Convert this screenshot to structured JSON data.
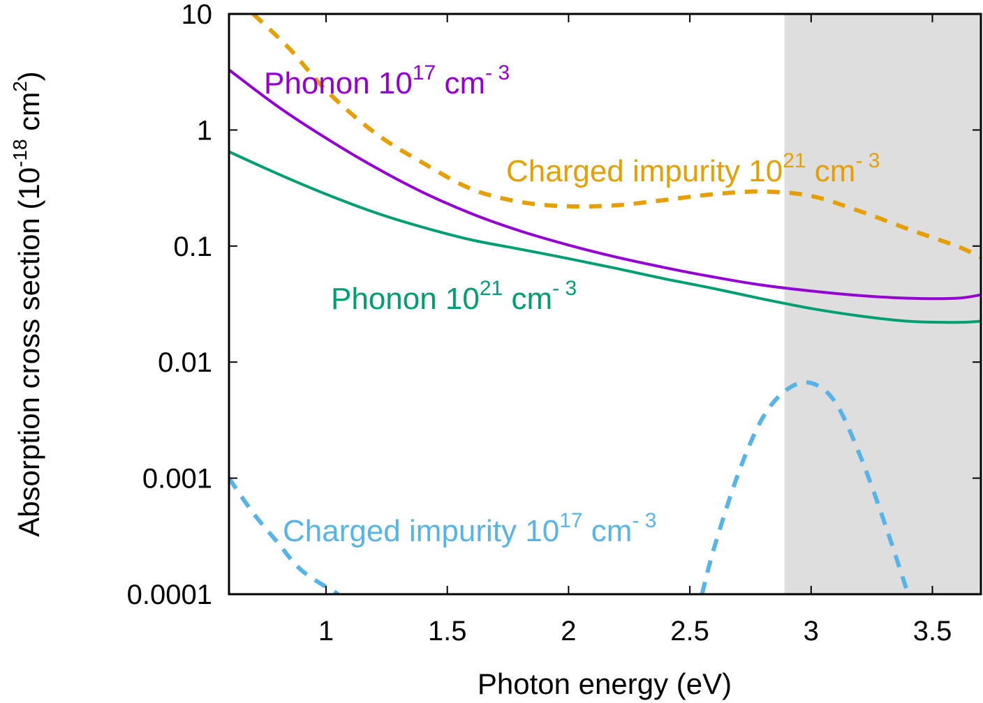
{
  "chart_data": {
    "type": "line",
    "title": "",
    "xlabel": "Photon energy (eV)",
    "ylabel": {
      "main": "Absorption cross section (10",
      "exp": "-18",
      "unit": " cm",
      "unit_exp": "2",
      "close": ")"
    },
    "xlim": [
      0.6,
      3.7
    ],
    "ylim": [
      0.0001,
      10
    ],
    "yscale": "log",
    "x_ticks": [
      1,
      1.5,
      2,
      2.5,
      3,
      3.5
    ],
    "x_tick_labels": [
      "1",
      "1.5",
      "2",
      "2.5",
      "3",
      "3.5"
    ],
    "y_ticks": [
      0.0001,
      0.001,
      0.01,
      0.1,
      1,
      10
    ],
    "y_tick_labels": [
      "0.0001",
      "0.001",
      "0.01",
      "0.1",
      "1",
      "10"
    ],
    "shaded_region": {
      "x_start": 2.89,
      "x_end": 3.7,
      "color": "#dedede"
    },
    "series": [
      {
        "name": "Phonon 10^17 cm^-3",
        "label_base": "Phonon 10",
        "label_exp": "17",
        "label_unit": " cm",
        "label_unit_exp": "- 3",
        "color": "#9400d3",
        "dashed": false,
        "x": [
          0.6,
          0.8,
          1.0,
          1.2,
          1.4,
          1.6,
          1.8,
          2.0,
          2.2,
          2.4,
          2.6,
          2.8,
          3.0,
          3.2,
          3.4,
          3.6,
          3.7
        ],
        "y": [
          3.3,
          1.6,
          0.85,
          0.48,
          0.29,
          0.19,
          0.135,
          0.102,
          0.08,
          0.065,
          0.054,
          0.046,
          0.041,
          0.0375,
          0.0355,
          0.0355,
          0.038
        ]
      },
      {
        "name": "Phonon 10^21 cm^-3",
        "label_base": "Phonon 10",
        "label_exp": "21",
        "label_unit": " cm",
        "label_unit_exp": "- 3",
        "color": "#009e73",
        "dashed": false,
        "x": [
          0.6,
          0.8,
          1.0,
          1.2,
          1.4,
          1.6,
          1.8,
          2.0,
          2.2,
          2.4,
          2.6,
          2.8,
          3.0,
          3.2,
          3.4,
          3.6,
          3.7
        ],
        "y": [
          0.65,
          0.42,
          0.28,
          0.195,
          0.145,
          0.113,
          0.094,
          0.078,
          0.064,
          0.052,
          0.043,
          0.035,
          0.029,
          0.025,
          0.0225,
          0.022,
          0.0225
        ]
      },
      {
        "name": "Charged impurity 10^21 cm^-3",
        "label_base": "Charged impurity 10",
        "label_exp": "21",
        "label_unit": " cm",
        "label_unit_exp": "- 3",
        "color": "#e69f00",
        "dashed": true,
        "x": [
          0.7,
          0.85,
          1.0,
          1.2,
          1.4,
          1.6,
          1.8,
          2.0,
          2.2,
          2.4,
          2.6,
          2.8,
          3.0,
          3.2,
          3.4,
          3.6,
          3.7
        ],
        "y": [
          10,
          5.0,
          2.2,
          0.95,
          0.52,
          0.31,
          0.24,
          0.22,
          0.225,
          0.25,
          0.28,
          0.295,
          0.27,
          0.2,
          0.14,
          0.1,
          0.08
        ]
      },
      {
        "name": "Charged impurity 10^17 cm^-3",
        "label_base": "Charged impurity 10",
        "label_exp": "17",
        "label_unit": " cm",
        "label_unit_exp": "- 3",
        "color": "#56b4e9",
        "dashed": true,
        "segments": [
          {
            "x": [
              0.6,
              0.7,
              0.8,
              0.9,
              1.05
            ],
            "y": [
              0.001,
              0.0005,
              0.00028,
              0.00016,
              0.0001
            ]
          },
          {
            "x": [
              2.55,
              2.6,
              2.7,
              2.8,
              2.9,
              3.0,
              3.1,
              3.2,
              3.3,
              3.4
            ],
            "y": [
              0.0001,
              0.00025,
              0.0011,
              0.0033,
              0.0058,
              0.0066,
              0.0045,
              0.0016,
              0.00043,
              0.0001
            ]
          }
        ]
      }
    ]
  }
}
